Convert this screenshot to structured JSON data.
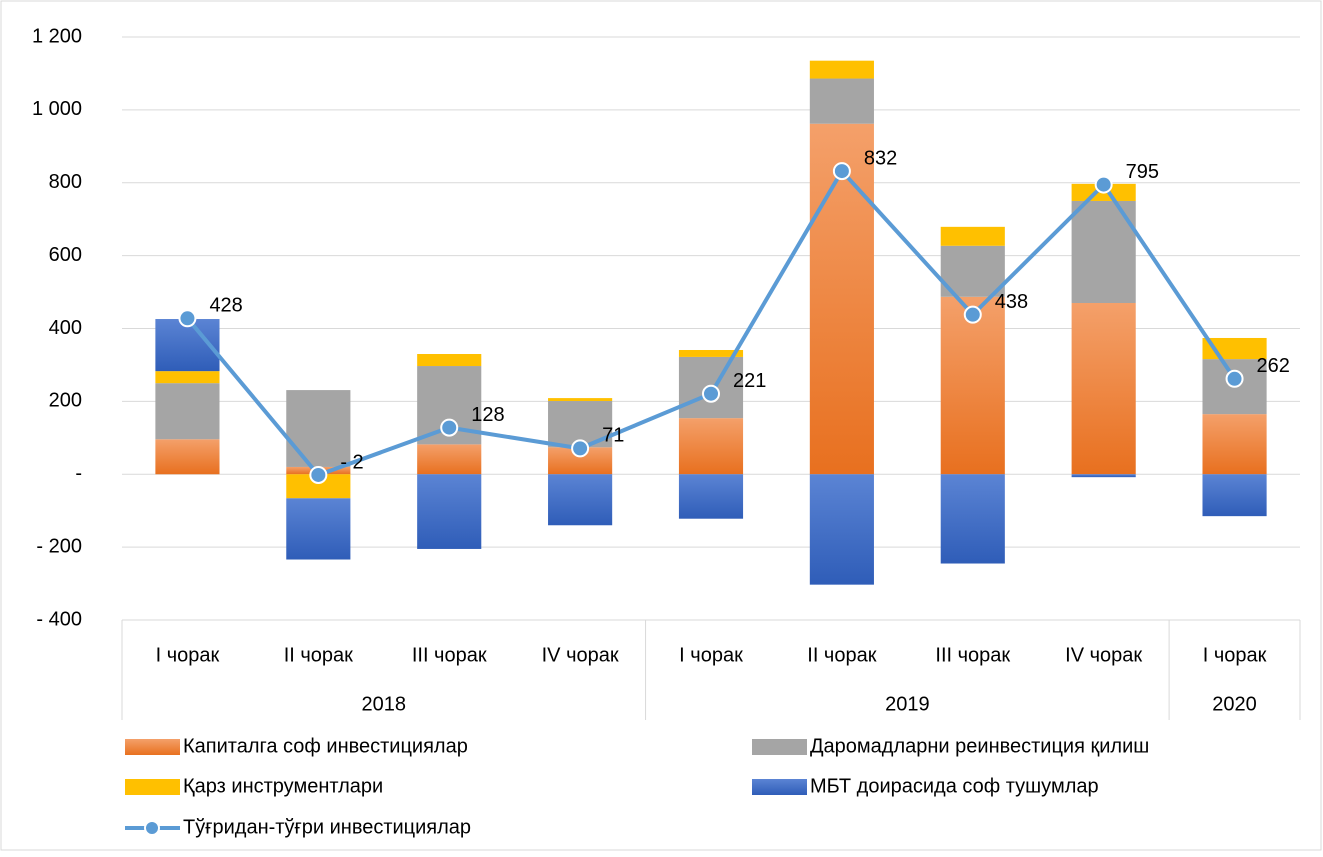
{
  "chart_data": {
    "type": "bar",
    "stacked": true,
    "categories": [
      "I чорак",
      "II чорак",
      "III чорак",
      "IV чорак",
      "I чорак",
      "II чорак",
      "III чорак",
      "IV чорак",
      "I чорак"
    ],
    "groups": [
      {
        "label": "2018",
        "span": 4
      },
      {
        "label": "2019",
        "span": 4
      },
      {
        "label": "2020",
        "span": 1
      }
    ],
    "series": [
      {
        "name": "Капиталга соф инвестициялар",
        "color": "#ED7D31",
        "values": [
          96,
          20,
          82,
          74,
          154,
          962,
          487,
          470,
          165
        ]
      },
      {
        "name": "Даромадларни реинвестиция қилиш",
        "color": "#A5A5A5",
        "values": [
          154,
          211,
          215,
          127,
          168,
          124,
          140,
          280,
          151
        ]
      },
      {
        "name": "Қарз инструментлари",
        "color": "#FFC000",
        "values": [
          33,
          -66,
          33,
          8,
          19,
          49,
          52,
          47,
          58
        ]
      },
      {
        "name": "МБТ доирасида соф тушумлар",
        "color": "#4472C4",
        "values": [
          143,
          -168,
          -205,
          -140,
          -122,
          -303,
          -245,
          -8,
          -115
        ]
      },
      {
        "name": "Тўғридан-тўғри инвестициялар",
        "type": "line",
        "color": "#5B9BD5",
        "values": [
          428,
          -2,
          128,
          71,
          221,
          832,
          438,
          795,
          262
        ],
        "value_labels": [
          "428",
          "- 2",
          "128",
          "71",
          "221",
          "832",
          "438",
          "795",
          "262"
        ]
      }
    ],
    "ylim": [
      -400,
      1200
    ],
    "yticks": [
      {
        "value": -400,
        "label": "- 400"
      },
      {
        "value": -200,
        "label": "- 200"
      },
      {
        "value": 0,
        "label": "-"
      },
      200,
      400,
      600,
      800,
      {
        "value": 1000,
        "label": "1 000"
      },
      {
        "value": 1200,
        "label": "1 200"
      }
    ],
    "grid": true
  }
}
